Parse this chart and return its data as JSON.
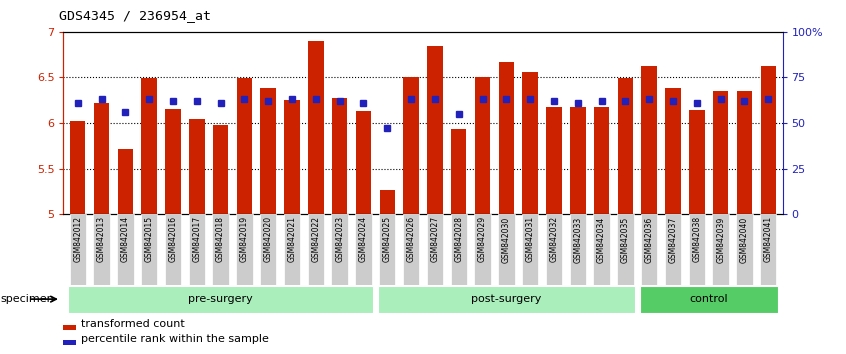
{
  "title": "GDS4345 / 236954_at",
  "samples": [
    "GSM842012",
    "GSM842013",
    "GSM842014",
    "GSM842015",
    "GSM842016",
    "GSM842017",
    "GSM842018",
    "GSM842019",
    "GSM842020",
    "GSM842021",
    "GSM842022",
    "GSM842023",
    "GSM842024",
    "GSM842025",
    "GSM842026",
    "GSM842027",
    "GSM842028",
    "GSM842029",
    "GSM842030",
    "GSM842031",
    "GSM842032",
    "GSM842033",
    "GSM842034",
    "GSM842035",
    "GSM842036",
    "GSM842037",
    "GSM842038",
    "GSM842039",
    "GSM842040",
    "GSM842041"
  ],
  "transformed_count": [
    6.02,
    6.22,
    5.72,
    6.49,
    6.15,
    6.04,
    5.98,
    6.49,
    6.38,
    6.25,
    6.9,
    6.27,
    6.13,
    5.26,
    6.5,
    6.84,
    5.93,
    6.51,
    6.67,
    6.56,
    6.18,
    6.18,
    6.18,
    6.49,
    6.63,
    6.38,
    6.14,
    6.35,
    6.35,
    6.63
  ],
  "percentile_rank_pct": [
    61,
    63,
    56,
    63,
    62,
    62,
    61,
    63,
    62,
    63,
    63,
    62,
    61,
    47,
    63,
    63,
    55,
    63,
    63,
    63,
    62,
    61,
    62,
    62,
    63,
    62,
    61,
    63,
    62,
    63
  ],
  "bar_color": "#CC2200",
  "percentile_color": "#2222BB",
  "ylim_left": [
    5.0,
    7.0
  ],
  "ylim_right": [
    0,
    100
  ],
  "yticks_left": [
    5.0,
    5.5,
    6.0,
    6.5,
    7.0
  ],
  "yticks_right": [
    0,
    25,
    50,
    75,
    100
  ],
  "group_boundaries": [
    0,
    13,
    24,
    30
  ],
  "group_labels": [
    "pre-surgery",
    "post-surgery",
    "control"
  ],
  "group_light_color": "#AAEEBB",
  "group_dark_color": "#55CC66",
  "label_bg_color": "#CCCCCC",
  "bar_width": 0.65,
  "figure_bg": "#FFFFFF"
}
